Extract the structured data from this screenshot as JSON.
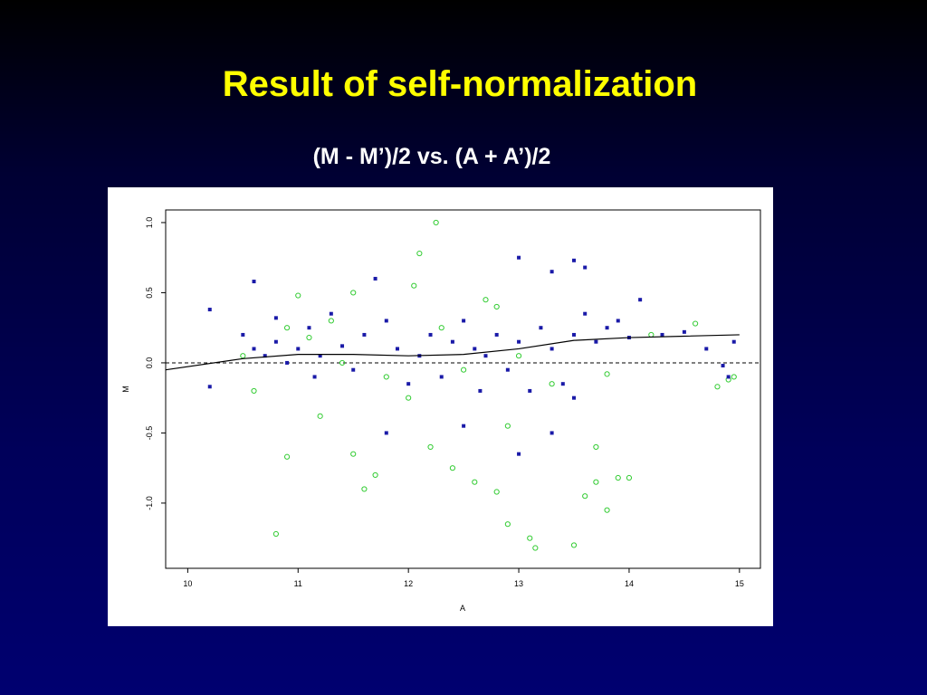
{
  "chart_data": {
    "type": "scatter",
    "title": "Result of self-normalization",
    "subtitle": "(M - M’)/2 vs. (A + A’)/2",
    "x_label": "A",
    "y_label": "M",
    "xlim": [
      9.8,
      15.19
    ],
    "ylim": [
      -1.465,
      1.09
    ],
    "xticks": [
      10,
      11,
      12,
      13,
      14,
      15
    ],
    "yticks": [
      {
        "value": 1.0,
        "label": "1.0"
      },
      0.5,
      {
        "value": 0.0,
        "label": "0.0"
      },
      -0.5,
      {
        "value": -1.0,
        "label": "-1.0"
      }
    ],
    "reference_line": 0,
    "series": [
      {
        "color": "#1a1aa8",
        "marker": "square",
        "x": [
          10.5,
          10.6,
          10.7,
          10.8,
          10.9,
          11.0,
          11.1,
          11.2,
          11.3,
          11.4,
          11.5,
          11.6,
          11.8,
          11.9,
          12.0,
          12.1,
          12.2,
          12.3,
          12.4,
          12.5,
          12.6,
          12.7,
          12.8,
          12.9,
          13.0,
          13.1,
          13.2,
          13.3,
          13.4,
          13.5,
          13.6,
          13.7,
          13.8,
          13.9,
          14.0,
          14.1,
          14.3,
          14.5,
          14.7,
          14.85,
          14.95,
          10.8,
          11.15,
          12.65,
          13.5,
          13.0,
          13.3,
          13.5,
          13.6,
          11.7,
          10.6,
          10.2,
          10.2,
          11.8,
          12.5,
          13.0,
          13.3,
          14.9
        ],
        "y": [
          0.2,
          0.1,
          0.05,
          0.15,
          0.0,
          0.1,
          0.25,
          0.05,
          0.35,
          0.12,
          -0.05,
          0.2,
          0.3,
          0.1,
          -0.15,
          0.05,
          0.2,
          -0.1,
          0.15,
          0.3,
          0.1,
          0.05,
          0.2,
          -0.05,
          0.15,
          -0.2,
          0.25,
          0.1,
          -0.15,
          0.2,
          0.35,
          0.15,
          0.25,
          0.3,
          0.18,
          0.45,
          0.2,
          0.22,
          0.1,
          -0.02,
          0.15,
          0.32,
          -0.1,
          -0.2,
          -0.25,
          0.75,
          0.65,
          0.73,
          0.68,
          0.6,
          0.58,
          0.38,
          -0.17,
          -0.5,
          -0.45,
          -0.65,
          -0.5,
          -0.1
        ]
      },
      {
        "color": "#33cc33",
        "marker": "circle",
        "x": [
          12.25,
          12.1,
          12.05,
          11.0,
          10.9,
          10.8,
          11.6,
          13.15,
          13.5,
          12.9,
          13.1,
          14.0,
          13.8,
          12.4,
          12.2,
          12.8,
          12.6,
          13.6,
          13.7,
          12.9,
          11.2,
          11.5,
          11.7,
          14.95,
          14.8,
          14.9,
          14.2,
          14.6,
          13.8,
          13.3,
          12.7,
          12.0,
          11.8,
          11.4,
          11.1,
          10.6,
          10.5,
          10.9,
          11.3,
          12.5,
          13.0,
          12.8,
          11.5,
          12.3,
          13.9,
          13.7
        ],
        "y": [
          1.0,
          0.78,
          0.55,
          0.48,
          -0.67,
          -1.22,
          -0.9,
          -1.32,
          -1.3,
          -1.15,
          -1.25,
          -0.82,
          -1.05,
          -0.75,
          -0.6,
          -0.92,
          -0.85,
          -0.95,
          -0.6,
          -0.45,
          -0.38,
          -0.65,
          -0.8,
          -0.1,
          -0.17,
          -0.12,
          0.2,
          0.28,
          -0.08,
          -0.15,
          0.45,
          -0.25,
          -0.1,
          0.0,
          0.18,
          -0.2,
          0.05,
          0.25,
          0.3,
          -0.05,
          0.05,
          0.4,
          0.5,
          0.25,
          -0.82,
          -0.85
        ]
      },
      {
        "color": "#000000",
        "marker": "line",
        "x": [
          9.8,
          10.5,
          11,
          11.5,
          12,
          12.5,
          13,
          13.5,
          14,
          14.5,
          15
        ],
        "y": [
          -0.05,
          0.03,
          0.06,
          0.06,
          0.05,
          0.06,
          0.1,
          0.16,
          0.18,
          0.19,
          0.2
        ]
      }
    ]
  }
}
